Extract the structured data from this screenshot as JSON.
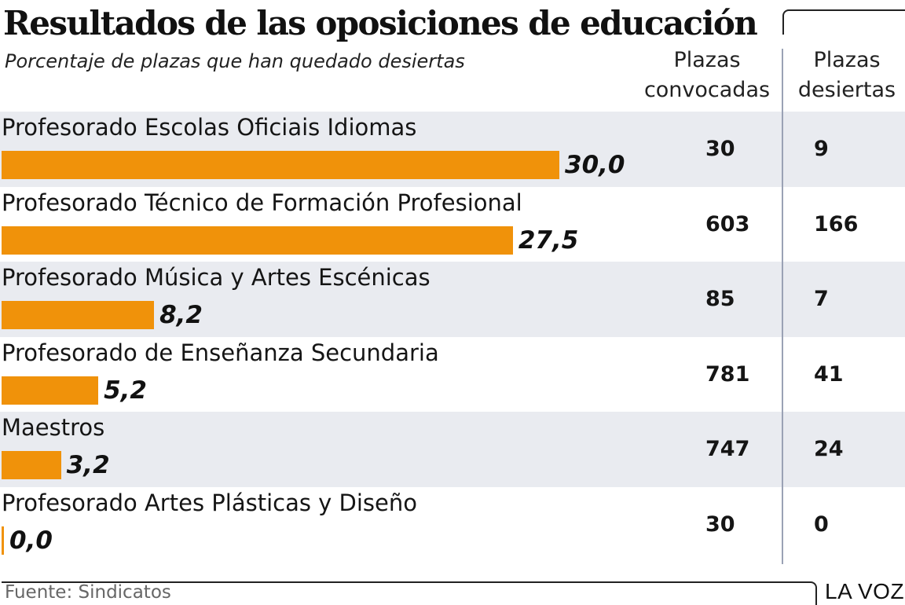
{
  "title": "Resultados de las oposiciones de educación",
  "subtitle": "Porcentaje de plazas que han quedado desiertas",
  "columns": {
    "convocadas": [
      "Plazas",
      "convocadas"
    ],
    "desiertas": [
      "Plazas",
      "desiertas"
    ]
  },
  "colors": {
    "bar": "#f0920a",
    "row_shade": "#e9ebf0",
    "divider": "#9aa2b5"
  },
  "chart_data": {
    "type": "bar",
    "orientation": "horizontal",
    "title": "Resultados de las oposiciones de educación",
    "subtitle": "Porcentaje de plazas que han quedado desiertas",
    "categories": [
      "Profesorado Escolas Oficiais Idiomas",
      "Profesorado Técnico de Formación Profesional",
      "Profesorado Música y Artes Escénicas",
      "Profesorado de Enseñanza Secundaria",
      "Maestros",
      "Profesorado Artes Plásticas y Diseño"
    ],
    "values": [
      30.0,
      27.5,
      8.2,
      5.2,
      3.2,
      0.0
    ],
    "value_labels": [
      "30,0",
      "27,5",
      "8,2",
      "5,2",
      "3,2",
      "0,0"
    ],
    "xlim": [
      0,
      30
    ],
    "grid": false,
    "table": {
      "convocadas": [
        "30",
        "603",
        "85",
        "781",
        "747",
        "30"
      ],
      "desiertas": [
        "9",
        "166",
        "7",
        "41",
        "24",
        "0"
      ]
    }
  },
  "footer": {
    "source": "Fuente: Sindicatos",
    "brand": "LA VOZ"
  }
}
